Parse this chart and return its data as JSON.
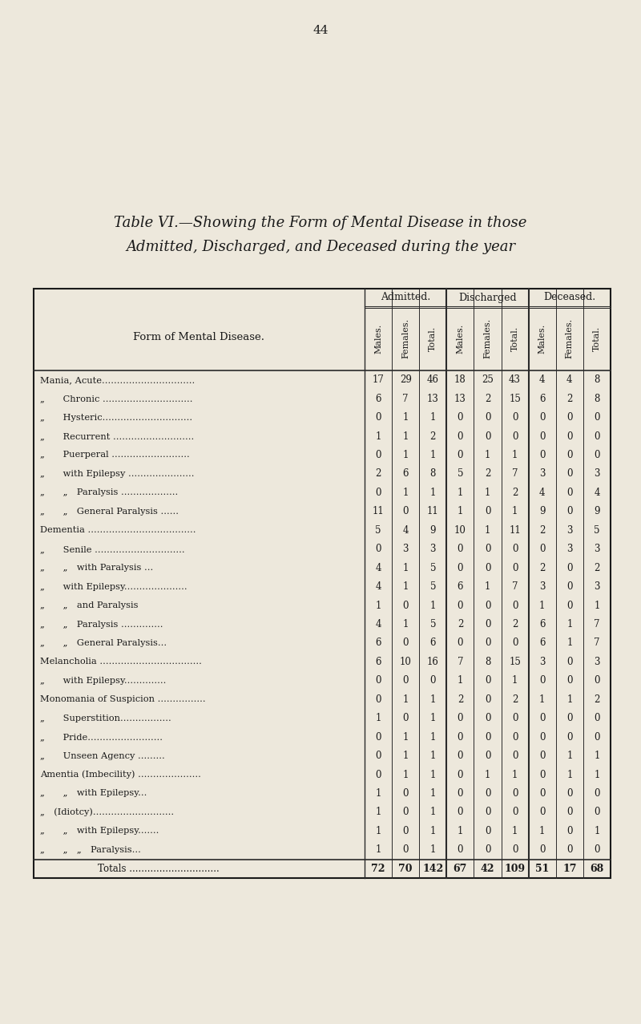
{
  "page_number": "44",
  "title_line1": "Table VI.—Showing the Form of Mental Disease in those",
  "title_line2": "Admitted, Discharged, and Deceased during the year",
  "background_color": "#ede8dc",
  "text_color": "#1a1a1a",
  "col_headers_main": [
    "Admitted.",
    "Discharged",
    "Deceased."
  ],
  "col_headers_sub": [
    "Males.",
    "Females.",
    "Total.",
    "Males.",
    "Females.",
    "Total.",
    "Males.",
    "Females.",
    "Total."
  ],
  "row_label_header": "Form of Mental Disease.",
  "rows": [
    {
      "label": "Mania, Acute...............................",
      "indent": 0,
      "data": [
        17,
        29,
        46,
        18,
        25,
        43,
        4,
        4,
        8
      ]
    },
    {
      "label": "„  Chronic ..............................",
      "indent": 1,
      "data": [
        6,
        7,
        13,
        13,
        2,
        15,
        6,
        2,
        8
      ]
    },
    {
      "label": "„  Hysteric..............................",
      "indent": 1,
      "data": [
        0,
        1,
        1,
        0,
        0,
        0,
        0,
        0,
        0
      ]
    },
    {
      "label": "„  Recurrent ...........................",
      "indent": 1,
      "data": [
        1,
        1,
        2,
        0,
        0,
        0,
        0,
        0,
        0
      ]
    },
    {
      "label": "„  Puerperal ..........................",
      "indent": 1,
      "data": [
        0,
        1,
        1,
        0,
        1,
        1,
        0,
        0,
        0
      ]
    },
    {
      "label": "„  with Epilepsy ......................",
      "indent": 1,
      "data": [
        2,
        6,
        8,
        5,
        2,
        7,
        3,
        0,
        3
      ]
    },
    {
      "label": "„  „ Paralysis ...................",
      "indent": 2,
      "data": [
        0,
        1,
        1,
        1,
        1,
        2,
        4,
        0,
        4
      ]
    },
    {
      "label": "„  „ General Paralysis ......",
      "indent": 2,
      "data": [
        11,
        0,
        11,
        1,
        0,
        1,
        9,
        0,
        9
      ]
    },
    {
      "label": "Dementia ....................................",
      "indent": 0,
      "data": [
        5,
        4,
        9,
        10,
        1,
        11,
        2,
        3,
        5
      ]
    },
    {
      "label": "„  Senile ..............................",
      "indent": 1,
      "data": [
        0,
        3,
        3,
        0,
        0,
        0,
        0,
        3,
        3
      ]
    },
    {
      "label": "„  „ with Paralysis ...",
      "indent": 2,
      "data": [
        4,
        1,
        5,
        0,
        0,
        0,
        2,
        0,
        2
      ]
    },
    {
      "label": "„  with Epilepsy.....................",
      "indent": 1,
      "data": [
        4,
        1,
        5,
        6,
        1,
        7,
        3,
        0,
        3
      ]
    },
    {
      "label": "„  „ and Paralysis",
      "indent": 2,
      "data": [
        1,
        0,
        1,
        0,
        0,
        0,
        1,
        0,
        1
      ]
    },
    {
      "label": "„  „ Paralysis ..............",
      "indent": 2,
      "data": [
        4,
        1,
        5,
        2,
        0,
        2,
        6,
        1,
        7
      ]
    },
    {
      "label": "„  „ General Paralysis...",
      "indent": 2,
      "data": [
        6,
        0,
        6,
        0,
        0,
        0,
        6,
        1,
        7
      ]
    },
    {
      "label": "Melancholia ..................................",
      "indent": 0,
      "data": [
        6,
        10,
        16,
        7,
        8,
        15,
        3,
        0,
        3
      ]
    },
    {
      "label": "„  with Epilepsy..............",
      "indent": 1,
      "data": [
        0,
        0,
        0,
        1,
        0,
        1,
        0,
        0,
        0
      ]
    },
    {
      "label": "Monomania of Suspicion ................",
      "indent": 0,
      "data": [
        0,
        1,
        1,
        2,
        0,
        2,
        1,
        1,
        2
      ]
    },
    {
      "label": "„  Superstition.................",
      "indent": 1,
      "data": [
        1,
        0,
        1,
        0,
        0,
        0,
        0,
        0,
        0
      ]
    },
    {
      "label": "„  Pride.........................",
      "indent": 1,
      "data": [
        0,
        1,
        1,
        0,
        0,
        0,
        0,
        0,
        0
      ]
    },
    {
      "label": "„  Unseen Agency .........",
      "indent": 1,
      "data": [
        0,
        1,
        1,
        0,
        0,
        0,
        0,
        1,
        1
      ]
    },
    {
      "label": "Amentia (Imbecility) .....................",
      "indent": 0,
      "data": [
        0,
        1,
        1,
        0,
        1,
        1,
        0,
        1,
        1
      ]
    },
    {
      "label": "„  „ with Epilepsy...",
      "indent": 2,
      "data": [
        1,
        0,
        1,
        0,
        0,
        0,
        0,
        0,
        0
      ]
    },
    {
      "label": "„ (Idiotcy)...........................",
      "indent": 1,
      "data": [
        1,
        0,
        1,
        0,
        0,
        0,
        0,
        0,
        0
      ]
    },
    {
      "label": "„  „ with Epilepsy.......",
      "indent": 2,
      "data": [
        1,
        0,
        1,
        1,
        0,
        1,
        1,
        0,
        1
      ]
    },
    {
      "label": "„  „ „ Paralysis...",
      "indent": 3,
      "data": [
        1,
        0,
        1,
        0,
        0,
        0,
        0,
        0,
        0
      ]
    }
  ],
  "totals": {
    "label": "Totals ..............................",
    "data": [
      72,
      70,
      142,
      67,
      42,
      109,
      51,
      17,
      68
    ]
  }
}
